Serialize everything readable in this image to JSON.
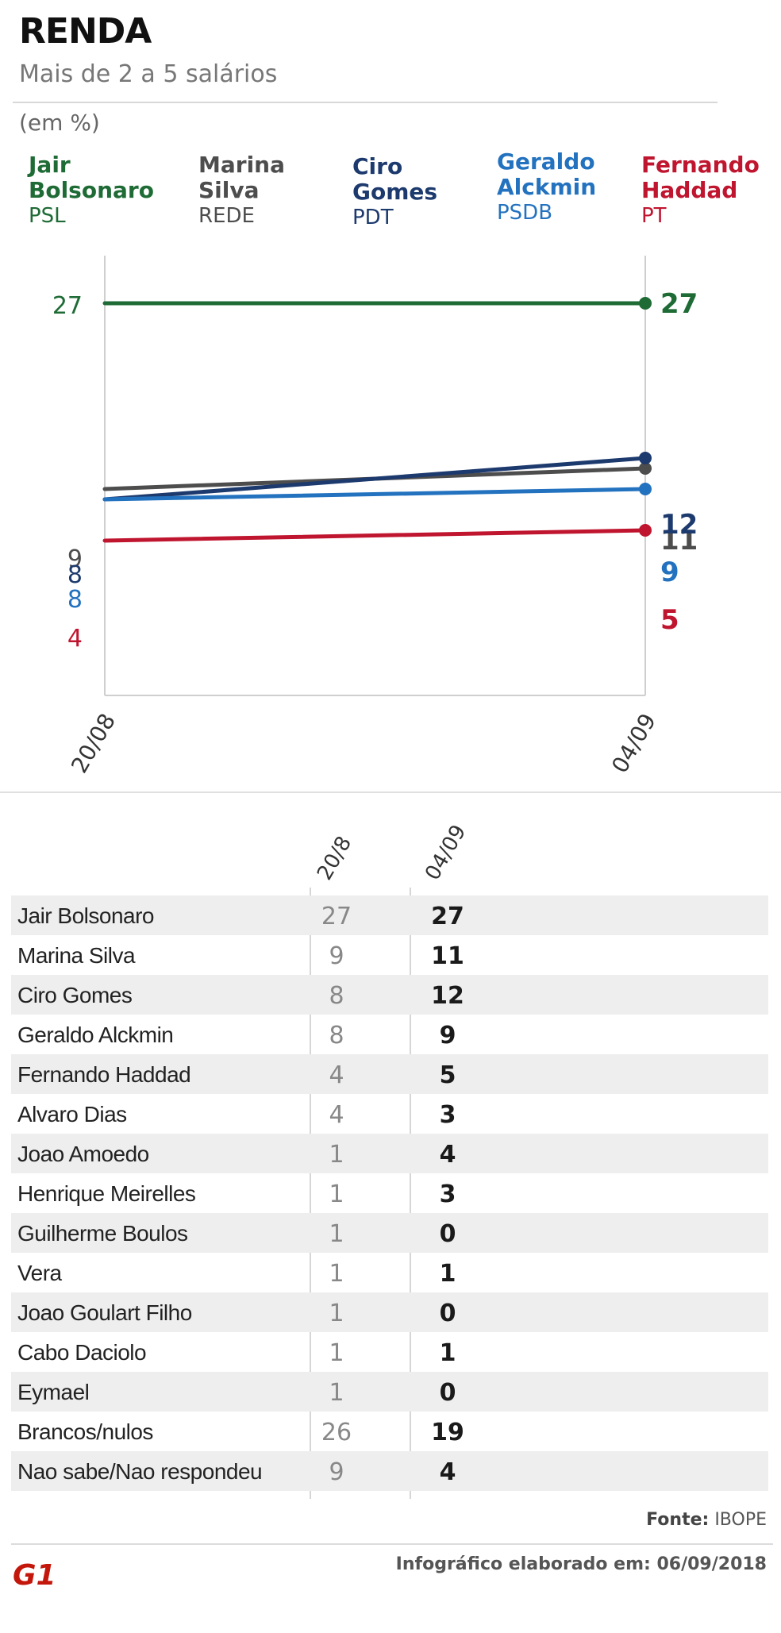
{
  "header": {
    "title": "RENDA",
    "subtitle": "Mais de 2 a 5 salários",
    "unit": "(em %)"
  },
  "legend": [
    {
      "name": "Jair Bolsonaro",
      "party": "PSL",
      "color": "#1e6b35"
    },
    {
      "name": "Marina Silva",
      "party": "REDE",
      "color": "#4d4d4d"
    },
    {
      "name": "Ciro Gomes",
      "party": "PDT",
      "color": "#1d3a6e"
    },
    {
      "name": "Geraldo Alckmin",
      "party": "PSDB",
      "color": "#2372bf"
    },
    {
      "name": "Fernando Haddad",
      "party": "PT",
      "color": "#c0152f"
    }
  ],
  "chart_data": {
    "type": "line",
    "x": [
      "20/08",
      "04/09"
    ],
    "series": [
      {
        "name": "Jair Bolsonaro",
        "values": [
          27,
          27
        ],
        "color": "#1e6b35"
      },
      {
        "name": "Marina Silva",
        "values": [
          9,
          11
        ],
        "color": "#4d4d4d"
      },
      {
        "name": "Ciro Gomes",
        "values": [
          8,
          12
        ],
        "color": "#1d3a6e"
      },
      {
        "name": "Geraldo Alckmin",
        "values": [
          8,
          9
        ],
        "color": "#2372bf"
      },
      {
        "name": "Fernando Haddad",
        "values": [
          4,
          5
        ],
        "color": "#c0152f"
      }
    ],
    "start_labels": [
      "27",
      "9",
      "8",
      "8",
      "4"
    ],
    "end_labels": [
      "27",
      "11",
      "12",
      "9",
      "5"
    ]
  },
  "table": {
    "columns": [
      "20/8",
      "04/09"
    ],
    "rows": [
      {
        "name": "Jair Bolsonaro",
        "v1": "27",
        "v2": "27"
      },
      {
        "name": "Marina Silva",
        "v1": "9",
        "v2": "11"
      },
      {
        "name": "Ciro Gomes",
        "v1": "8",
        "v2": "12"
      },
      {
        "name": "Geraldo Alckmin",
        "v1": "8",
        "v2": "9"
      },
      {
        "name": "Fernando Haddad",
        "v1": "4",
        "v2": "5"
      },
      {
        "name": "Alvaro Dias",
        "v1": "4",
        "v2": "3"
      },
      {
        "name": "Joao Amoedo",
        "v1": "1",
        "v2": "4"
      },
      {
        "name": "Henrique Meirelles",
        "v1": "1",
        "v2": "3"
      },
      {
        "name": "Guilherme Boulos",
        "v1": "1",
        "v2": "0"
      },
      {
        "name": "Vera",
        "v1": "1",
        "v2": "1"
      },
      {
        "name": "Joao Goulart Filho",
        "v1": "1",
        "v2": "0"
      },
      {
        "name": "Cabo Daciolo",
        "v1": "1",
        "v2": "1"
      },
      {
        "name": "Eymael",
        "v1": "1",
        "v2": "0"
      },
      {
        "name": "Brancos/nulos",
        "v1": "26",
        "v2": "19"
      },
      {
        "name": "Nao sabe/Nao respondeu",
        "v1": "9",
        "v2": "4"
      }
    ]
  },
  "footer": {
    "source_label": "Fonte:",
    "source": "IBOPE",
    "credit": "Infográfico elaborado em: 06/09/2018",
    "logo_text": "G1",
    "logo_color": "#c4170c"
  }
}
